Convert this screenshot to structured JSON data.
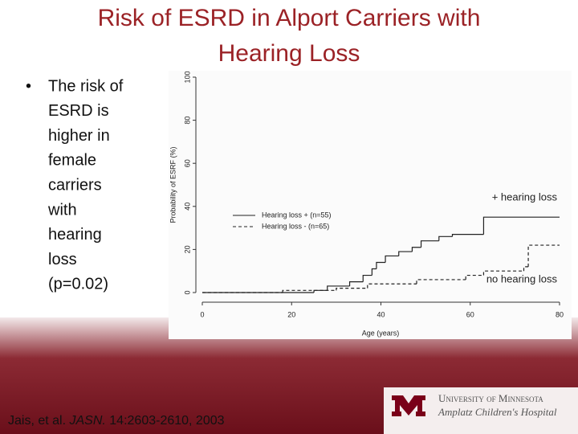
{
  "slide": {
    "title_lines": [
      "Risk of ESRD in Alport Carriers with",
      "Hearing Loss"
    ],
    "bullet_lines": [
      "The risk of",
      "ESRD is",
      "higher in",
      "female",
      "carriers",
      "with",
      "hearing",
      "loss",
      "(p=0.02)"
    ],
    "citation": [
      "Jais, et al. ",
      "JASN.",
      " 14:2603-2610, 2003"
    ],
    "logo": [
      "University of Minnesota",
      "Amplatz Children's Hospital"
    ]
  },
  "chart_data": {
    "type": "step",
    "ylabel": "Probability of ESRF (%)",
    "xlabel": "Age (years)",
    "xlim": [
      0,
      80
    ],
    "xticks": [
      0,
      20,
      40,
      60,
      80
    ],
    "ylim": [
      0,
      100
    ],
    "yticks": [
      0,
      20,
      40,
      60,
      80,
      100
    ],
    "annotations": [
      "+ hearing loss",
      "no hearing loss"
    ],
    "series": [
      {
        "name": "Hearing loss + (n=55)",
        "color": "#222222",
        "dash": false,
        "x": [
          0,
          25,
          28,
          33,
          36,
          38,
          39,
          41,
          44,
          47,
          49,
          53,
          56,
          63,
          80
        ],
        "values": [
          0,
          1,
          3,
          5,
          8,
          11,
          14,
          17,
          19,
          21,
          24,
          26,
          27,
          35,
          35
        ]
      },
      {
        "name": "Hearing loss - (n=65)",
        "color": "#222222",
        "dash": true,
        "x": [
          0,
          18,
          30,
          37,
          48,
          59,
          63,
          72,
          73,
          80
        ],
        "values": [
          0,
          1,
          2,
          4,
          6,
          8,
          10,
          12,
          22,
          22
        ]
      }
    ]
  }
}
